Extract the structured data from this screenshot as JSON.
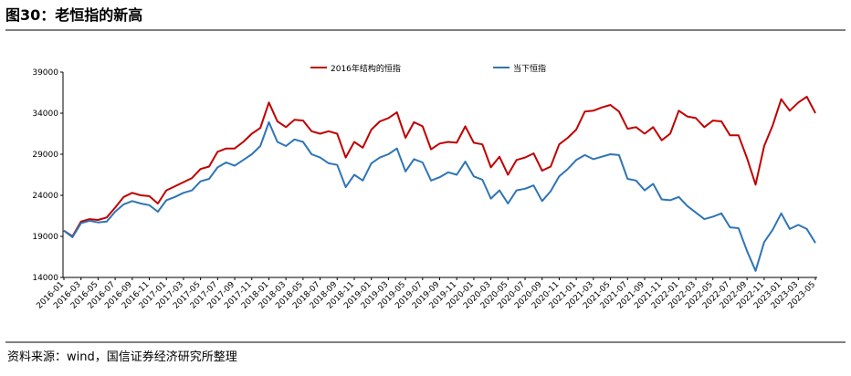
{
  "header": {
    "title": "图30：老恒指的新高"
  },
  "chart_data": {
    "type": "line",
    "categories": [
      "2016-01",
      null,
      "2016-03",
      null,
      "2016-05",
      null,
      "2016-07",
      null,
      "2016-09",
      null,
      "2016-11",
      null,
      "2017-01",
      null,
      "2017-03",
      null,
      "2017-05",
      null,
      "2017-07",
      null,
      "2017-09",
      null,
      "2017-11",
      null,
      "2018-01",
      null,
      "2018-03",
      null,
      "2018-05",
      null,
      "2018-07",
      null,
      "2018-09",
      null,
      "2018-11",
      null,
      "2019-01",
      null,
      "2019-03",
      null,
      "2019-05",
      null,
      "2019-07",
      null,
      "2019-09",
      null,
      "2019-11",
      null,
      "2020-01",
      null,
      "2020-03",
      null,
      "2020-05",
      null,
      "2020-07",
      null,
      "2020-09",
      null,
      "2020-11",
      null,
      "2021-01",
      null,
      "2021-03",
      null,
      "2021-05",
      null,
      "2021-07",
      null,
      "2021-09",
      null,
      "2021-11",
      null,
      "2022-01",
      null,
      "2022-03",
      null,
      "2022-05",
      null,
      "2022-07",
      null,
      "2022-09",
      null,
      "2022-11",
      null,
      "2023-01",
      null,
      "2023-03",
      null,
      "2023-05"
    ],
    "series": [
      {
        "name": "2016年结构的恒指",
        "color": "#c00000",
        "values": [
          19700,
          19000,
          20800,
          21100,
          21000,
          21300,
          22500,
          23800,
          24300,
          24000,
          23900,
          23000,
          24600,
          25100,
          25600,
          26100,
          27200,
          27500,
          29300,
          29700,
          29700,
          30500,
          31500,
          32200,
          35300,
          33000,
          32300,
          33200,
          33100,
          31800,
          31500,
          31800,
          31500,
          28600,
          30500,
          29800,
          32000,
          33000,
          33400,
          34100,
          31000,
          32900,
          32400,
          29600,
          30300,
          30500,
          30400,
          32400,
          30400,
          30200,
          27400,
          28700,
          26500,
          28300,
          28600,
          29100,
          27000,
          27500,
          30200,
          31000,
          32000,
          34200,
          34300,
          34700,
          35000,
          34200,
          32100,
          32300,
          31500,
          32300,
          30700,
          31500,
          34300,
          33600,
          33400,
          32300,
          33100,
          33000,
          31300,
          31300,
          28500,
          25300,
          30000,
          32500,
          35700,
          34300,
          35300,
          36000,
          34000
        ]
      },
      {
        "name": "当下恒指",
        "color": "#2e75b6",
        "values": [
          19700,
          18900,
          20600,
          20900,
          20700,
          20800,
          22000,
          22900,
          23300,
          23000,
          22800,
          22000,
          23400,
          23800,
          24300,
          24600,
          25700,
          26000,
          27400,
          28000,
          27600,
          28300,
          29000,
          30000,
          32900,
          30500,
          30000,
          30800,
          30500,
          29000,
          28600,
          27900,
          27700,
          25000,
          26500,
          25800,
          27900,
          28600,
          29000,
          29700,
          26900,
          28400,
          28000,
          25800,
          26200,
          26800,
          26500,
          28100,
          26300,
          25900,
          23600,
          24600,
          23000,
          24600,
          24800,
          25200,
          23300,
          24500,
          26300,
          27200,
          28300,
          28900,
          28400,
          28700,
          29000,
          28900,
          26000,
          25800,
          24600,
          25400,
          23500,
          23400,
          23800,
          22700,
          21900,
          21100,
          21400,
          21800,
          20100,
          20000,
          17200,
          14800,
          18300,
          19800,
          21800,
          19900,
          20400,
          19900,
          18200
        ]
      }
    ],
    "ylim": [
      14000,
      39000
    ],
    "yticks": [
      14000,
      19000,
      24000,
      29000,
      34000,
      39000
    ],
    "legend": "top"
  },
  "footer": {
    "source": "资料来源：wind，国信证券经济研究所整理"
  }
}
